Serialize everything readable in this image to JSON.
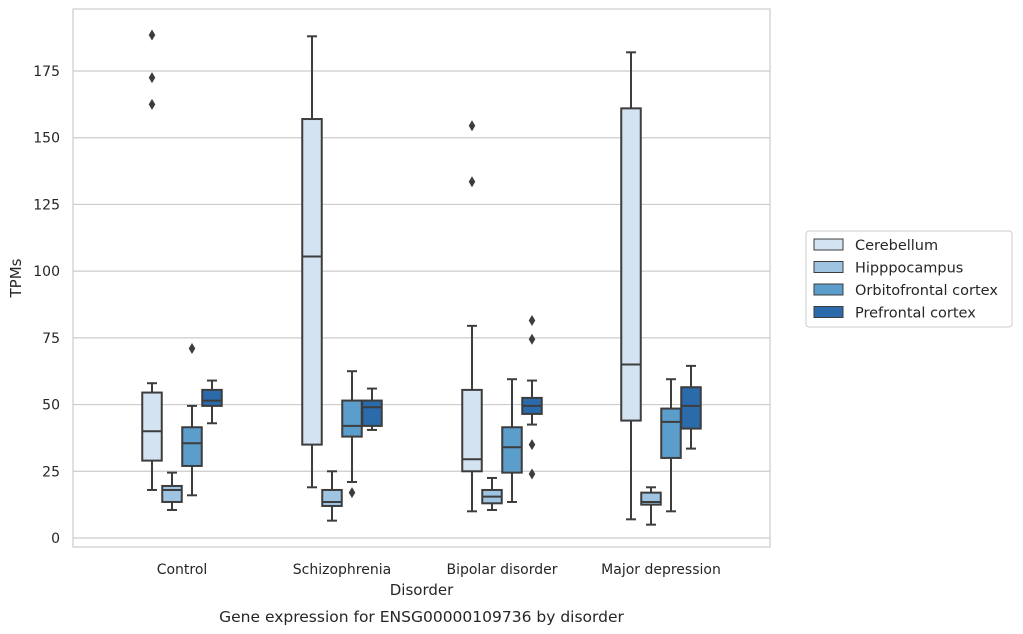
{
  "chart_data": {
    "type": "box",
    "caption": "Gene expression for ENSG00000109736 by disorder",
    "xlabel": "Disorder",
    "ylabel": "TPMs",
    "ylim": [
      -4,
      199
    ],
    "y_ticks": [
      0,
      25,
      50,
      75,
      100,
      125,
      150,
      175
    ],
    "grid": "horizontal",
    "legend_position": "right",
    "categories": [
      "Control",
      "Schizophrenia",
      "Bipolar disorder",
      "Major depression"
    ],
    "series": [
      {
        "name": "Cerebellum",
        "color": "#d4e3f2",
        "boxes": [
          {
            "whisker_low": 18,
            "q1": 29,
            "median": 40,
            "q3": 54.5,
            "whisker_high": 58,
            "outliers": [
              162.5,
              172.5,
              188.5
            ]
          },
          {
            "whisker_low": 19,
            "q1": 35,
            "median": 105.5,
            "q3": 157,
            "whisker_high": 188,
            "outliers": []
          },
          {
            "whisker_low": 10,
            "q1": 25,
            "median": 29.5,
            "q3": 55.5,
            "whisker_high": 79.5,
            "outliers": [
              133.5,
              154.5
            ]
          },
          {
            "whisker_low": 7,
            "q1": 44,
            "median": 65,
            "q3": 161,
            "whisker_high": 182,
            "outliers": []
          }
        ]
      },
      {
        "name": "Hipppocampus",
        "color": "#9fc4e1",
        "boxes": [
          {
            "whisker_low": 10.5,
            "q1": 13.5,
            "median": 18,
            "q3": 19.5,
            "whisker_high": 24.5,
            "outliers": []
          },
          {
            "whisker_low": 6.5,
            "q1": 12,
            "median": 13.5,
            "q3": 18,
            "whisker_high": 25,
            "outliers": []
          },
          {
            "whisker_low": 10.5,
            "q1": 13,
            "median": 15.5,
            "q3": 18,
            "whisker_high": 22.5,
            "outliers": []
          },
          {
            "whisker_low": 5,
            "q1": 12.5,
            "median": 13.5,
            "q3": 17,
            "whisker_high": 19,
            "outliers": []
          }
        ]
      },
      {
        "name": "Orbitofrontal cortex",
        "color": "#5b9dcb",
        "boxes": [
          {
            "whisker_low": 16,
            "q1": 27,
            "median": 35.5,
            "q3": 41.5,
            "whisker_high": 49.5,
            "outliers": [
              71
            ]
          },
          {
            "whisker_low": 21,
            "q1": 38,
            "median": 42,
            "q3": 51.5,
            "whisker_high": 62.5,
            "outliers": [
              17
            ]
          },
          {
            "whisker_low": 13.5,
            "q1": 24.5,
            "median": 34,
            "q3": 41.5,
            "whisker_high": 59.5,
            "outliers": []
          },
          {
            "whisker_low": 10,
            "q1": 30,
            "median": 43.5,
            "q3": 48.5,
            "whisker_high": 59.5,
            "outliers": []
          }
        ]
      },
      {
        "name": "Prefrontal cortex",
        "color": "#2b6aab",
        "boxes": [
          {
            "whisker_low": 43,
            "q1": 49.5,
            "median": 51.5,
            "q3": 55.5,
            "whisker_high": 59,
            "outliers": []
          },
          {
            "whisker_low": 40.5,
            "q1": 42,
            "median": 49,
            "q3": 51.5,
            "whisker_high": 56,
            "outliers": []
          },
          {
            "whisker_low": 42.5,
            "q1": 46.5,
            "median": 49.5,
            "q3": 52.5,
            "whisker_high": 59,
            "outliers": [
              24,
              35,
              74.5,
              81.5
            ]
          },
          {
            "whisker_low": 33.5,
            "q1": 41,
            "median": 49.5,
            "q3": 56.5,
            "whisker_high": 64.5,
            "outliers": []
          }
        ]
      }
    ]
  }
}
